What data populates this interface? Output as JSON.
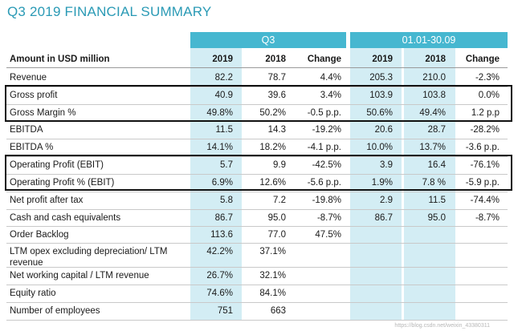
{
  "title": "Q3 2019 FINANCIAL SUMMARY",
  "groups": {
    "q3": "Q3",
    "ytd": "01.01-30.09"
  },
  "header": {
    "label": "Amount in USD million",
    "cols": [
      "2019",
      "2018",
      "Change",
      "2019",
      "2018",
      "Change"
    ]
  },
  "rows": [
    {
      "label": "Revenue",
      "values": [
        "82.2",
        "78.7",
        "4.4%",
        "205.3",
        "210.0",
        "-2.3%"
      ]
    },
    {
      "label": "Gross profit",
      "values": [
        "40.9",
        "39.6",
        "3.4%",
        "103.9",
        "103.8",
        "0.0%"
      ]
    },
    {
      "label": "Gross Margin %",
      "values": [
        "49.8%",
        "50.2%",
        "-0.5 p.p.",
        "50.6%",
        "49.4%",
        "1.2 p.p"
      ]
    },
    {
      "label": "EBITDA",
      "values": [
        "11.5",
        "14.3",
        "-19.2%",
        "20.6",
        "28.7",
        "-28.2%"
      ]
    },
    {
      "label": "EBITDA %",
      "values": [
        "14.1%",
        "18.2%",
        "-4.1 p.p.",
        "10.0%",
        "13.7%",
        "-3.6 p.p."
      ]
    },
    {
      "label": "Operating Profit (EBIT)",
      "values": [
        "5.7",
        "9.9",
        "-42.5%",
        "3.9",
        "16.4",
        "-76.1%"
      ]
    },
    {
      "label": "Operating Profit % (EBIT)",
      "values": [
        "6.9%",
        "12.6%",
        "-5.6 p.p.",
        "1.9%",
        "7.8 %",
        "-5.9 p.p."
      ]
    },
    {
      "label": "Net profit after tax",
      "values": [
        "5.8",
        "7.2",
        "-19.8%",
        "2.9",
        "11.5",
        "-74.4%"
      ]
    },
    {
      "label": "Cash and cash equivalents",
      "values": [
        "86.7",
        "95.0",
        "-8.7%",
        "86.7",
        "95.0",
        "-8.7%"
      ]
    },
    {
      "label": "Order Backlog",
      "values": [
        "113.6",
        "77.0",
        "47.5%",
        "",
        "",
        ""
      ]
    },
    {
      "label": "LTM opex excluding depreciation/ LTM revenue",
      "values": [
        "42.2%",
        "37.1%",
        "",
        "",
        "",
        ""
      ]
    },
    {
      "label": "Net working capital / LTM revenue",
      "values": [
        "26.7%",
        "32.1%",
        "",
        "",
        "",
        ""
      ]
    },
    {
      "label": "Equity ratio",
      "values": [
        "74.6%",
        "84.1%",
        "",
        "",
        "",
        ""
      ]
    },
    {
      "label": "Number of employees",
      "values": [
        "751",
        "663",
        "",
        "",
        "",
        ""
      ]
    }
  ],
  "watermark": "https://blog.csdn.net/weixin_43380311"
}
